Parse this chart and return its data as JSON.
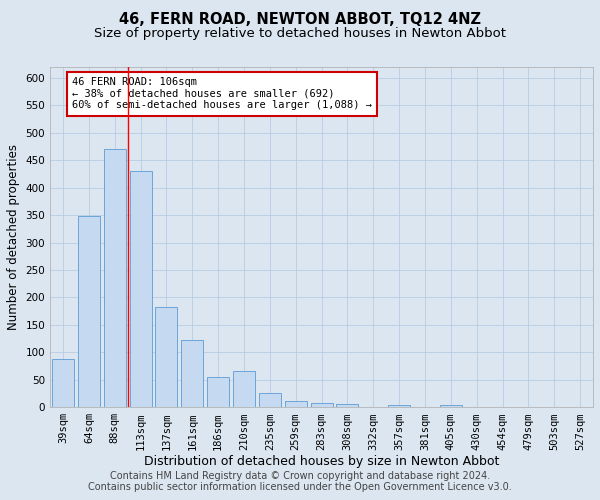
{
  "title": "46, FERN ROAD, NEWTON ABBOT, TQ12 4NZ",
  "subtitle": "Size of property relative to detached houses in Newton Abbot",
  "xlabel": "Distribution of detached houses by size in Newton Abbot",
  "ylabel": "Number of detached properties",
  "footer_line1": "Contains HM Land Registry data © Crown copyright and database right 2024.",
  "footer_line2": "Contains public sector information licensed under the Open Government Licence v3.0.",
  "categories": [
    "39sqm",
    "64sqm",
    "88sqm",
    "113sqm",
    "137sqm",
    "161sqm",
    "186sqm",
    "210sqm",
    "235sqm",
    "259sqm",
    "283sqm",
    "308sqm",
    "332sqm",
    "357sqm",
    "381sqm",
    "405sqm",
    "430sqm",
    "454sqm",
    "479sqm",
    "503sqm",
    "527sqm"
  ],
  "values": [
    88,
    348,
    470,
    430,
    183,
    122,
    55,
    65,
    25,
    12,
    8,
    5,
    0,
    4,
    0,
    4,
    0,
    0,
    0,
    0,
    0
  ],
  "bar_color": "#c5d9f1",
  "bar_edge_color": "#5b9bd5",
  "grid_color": "#b8cce4",
  "outer_bg_color": "#dce6f1",
  "plot_bg_color": "#dce6f1",
  "red_line_x": 2.5,
  "annotation_text": "46 FERN ROAD: 106sqm\n← 38% of detached houses are smaller (692)\n60% of semi-detached houses are larger (1,088) →",
  "annotation_box_color": "#ffffff",
  "annotation_border_color": "#cc0000",
  "ylim": [
    0,
    620
  ],
  "yticks": [
    0,
    50,
    100,
    150,
    200,
    250,
    300,
    350,
    400,
    450,
    500,
    550,
    600
  ],
  "title_fontsize": 10.5,
  "subtitle_fontsize": 9.5,
  "xlabel_fontsize": 9,
  "ylabel_fontsize": 8.5,
  "tick_fontsize": 7.5,
  "footer_fontsize": 7,
  "annotation_fontsize": 7.5
}
